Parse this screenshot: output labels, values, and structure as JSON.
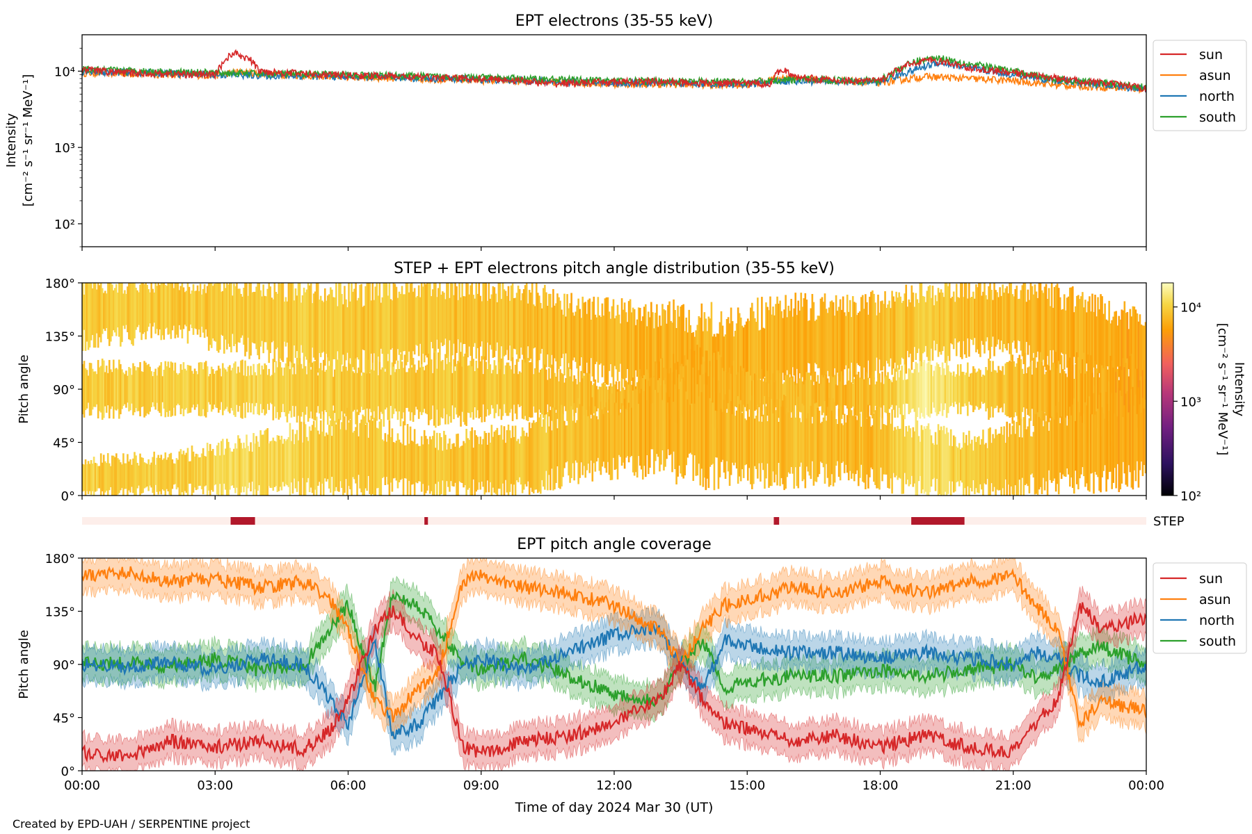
{
  "credit": "Created by EPD-UAH / SERPENTINE project",
  "colors": {
    "sun": "#d62728",
    "asun": "#ff7f0e",
    "north": "#1f77b4",
    "south": "#2ca02c",
    "step_bar": "#b2182b",
    "step_bg": "#fdeeea"
  },
  "chart_data": [
    {
      "id": "top",
      "type": "line",
      "title": "EPT electrons (35-55 keV)",
      "ylabel": [
        "Intensity",
        "[cm⁻² s⁻¹ sr⁻¹ MeV⁻¹]"
      ],
      "yscale": "log",
      "ylim": [
        50,
        30000
      ],
      "yticks": [
        {
          "value": 100,
          "label": "10²"
        },
        {
          "value": 1000,
          "label": "10³"
        },
        {
          "value": 10000,
          "label": "10⁴"
        }
      ],
      "xlim_hours": [
        0,
        24
      ],
      "legend": {
        "placement": "outside-right",
        "entries": [
          "sun",
          "asun",
          "north",
          "south"
        ]
      },
      "series": [
        {
          "name": "sun",
          "hours": [
            0,
            1,
            2,
            3,
            3.4,
            3.8,
            4,
            5,
            6,
            7,
            8,
            9,
            10,
            10.5,
            11,
            12,
            13,
            14,
            15,
            15.5,
            15.8,
            16,
            17,
            18,
            18.7,
            19,
            19.5,
            20,
            21,
            22,
            23,
            24
          ],
          "values": [
            10500,
            9500,
            9200,
            9000,
            17500,
            14000,
            10000,
            9300,
            8800,
            8600,
            8200,
            8000,
            7500,
            6800,
            7000,
            7200,
            7300,
            7000,
            7000,
            6800,
            11000,
            8500,
            7500,
            7500,
            12500,
            14000,
            13000,
            11000,
            9500,
            8000,
            7000,
            6000
          ]
        },
        {
          "name": "asun",
          "hours": [
            0,
            3,
            3.5,
            4,
            6,
            9,
            12,
            15,
            15.8,
            18,
            19,
            20,
            21,
            22,
            24
          ],
          "values": [
            9500,
            8800,
            9800,
            9200,
            8400,
            7600,
            6800,
            6600,
            8200,
            7000,
            8500,
            8000,
            7500,
            6600,
            5800
          ]
        },
        {
          "name": "north",
          "hours": [
            0,
            3,
            6,
            9,
            12,
            15,
            16,
            18,
            18.8,
            19.3,
            20,
            21,
            22,
            24
          ],
          "values": [
            10000,
            9000,
            8500,
            7800,
            7000,
            6800,
            7500,
            7200,
            10500,
            13000,
            11000,
            9000,
            7500,
            5800
          ]
        },
        {
          "name": "south",
          "hours": [
            0,
            3,
            6,
            9,
            12,
            15,
            16,
            18,
            18.8,
            19.3,
            20,
            21,
            22,
            24
          ],
          "values": [
            10500,
            9500,
            9000,
            8200,
            7500,
            7200,
            7800,
            7500,
            13500,
            15000,
            12500,
            10000,
            7800,
            6200
          ]
        }
      ]
    },
    {
      "id": "middle",
      "type": "heatmap",
      "title": "STEP + EPT electrons pitch angle distribution (35-55 keV)",
      "ylabel": "Pitch angle",
      "ylim": [
        0,
        180
      ],
      "yticks": [
        "0°",
        "45°",
        "90°",
        "135°",
        "180°"
      ],
      "xlim_hours": [
        0,
        24
      ],
      "colorbar": {
        "label": [
          "Intensity",
          "[cm⁻² s⁻¹ sr⁻¹ MeV⁻¹]"
        ],
        "scale": "log",
        "range": [
          100,
          18000
        ],
        "ticks": [
          {
            "value": 100,
            "label": "10²"
          },
          {
            "value": 1000,
            "label": "10³"
          },
          {
            "value": 10000,
            "label": "10⁴"
          }
        ]
      },
      "bands": [
        {
          "hours": [
            0,
            2,
            4,
            6,
            8,
            10,
            11,
            12,
            13,
            14,
            15,
            16,
            17,
            18,
            19,
            20,
            21,
            22,
            23,
            24
          ],
          "center": [
            155,
            160,
            150,
            140,
            150,
            145,
            135,
            130,
            120,
            110,
            115,
            130,
            130,
            135,
            145,
            150,
            150,
            140,
            130,
            120
          ],
          "width": [
            50,
            45,
            55,
            65,
            60,
            60,
            55,
            55,
            70,
            80,
            75,
            65,
            60,
            60,
            55,
            50,
            55,
            65,
            60,
            60
          ],
          "intensity": [
            9000,
            9000,
            9500,
            9000,
            8500,
            8000,
            7500,
            7500,
            7000,
            7000,
            7000,
            7000,
            7000,
            7500,
            9000,
            8000,
            7500,
            7000,
            6500,
            6000
          ]
        },
        {
          "hours": [
            0,
            2,
            4,
            6,
            8,
            10,
            11,
            12,
            13,
            14,
            15,
            16,
            17,
            18,
            19,
            20,
            21,
            22,
            23,
            24
          ],
          "center": [
            90,
            90,
            90,
            88,
            90,
            90,
            85,
            80,
            85,
            90,
            88,
            85,
            85,
            85,
            90,
            90,
            90,
            85,
            80,
            80
          ],
          "width": [
            40,
            35,
            40,
            45,
            50,
            40,
            35,
            25,
            45,
            60,
            30,
            30,
            30,
            30,
            40,
            35,
            45,
            55,
            60,
            60
          ],
          "intensity": [
            9500,
            9500,
            10000,
            9000,
            9000,
            8500,
            8000,
            7500,
            7000,
            7000,
            7500,
            7500,
            7500,
            8000,
            14000,
            9000,
            8000,
            7000,
            6500,
            6000
          ]
        },
        {
          "hours": [
            0,
            2,
            4,
            6,
            8,
            10,
            11,
            12,
            13,
            14,
            15,
            16,
            17,
            18,
            19,
            20,
            21,
            22,
            23,
            24
          ],
          "center": [
            15,
            18,
            25,
            35,
            25,
            30,
            45,
            50,
            60,
            55,
            45,
            45,
            45,
            40,
            30,
            25,
            30,
            40,
            45,
            50
          ],
          "width": [
            30,
            30,
            45,
            60,
            45,
            50,
            55,
            55,
            70,
            75,
            60,
            60,
            55,
            55,
            50,
            45,
            50,
            60,
            65,
            70
          ],
          "intensity": [
            9500,
            9500,
            11000,
            9000,
            8500,
            8500,
            8000,
            7500,
            7000,
            7000,
            7500,
            8000,
            7500,
            7500,
            12000,
            9000,
            8000,
            7000,
            6500,
            6000
          ]
        }
      ]
    },
    {
      "id": "step",
      "type": "bar",
      "label": "STEP",
      "xlim_hours": [
        0,
        24
      ],
      "segments": [
        [
          3.35,
          3.9
        ],
        [
          7.72,
          7.8
        ],
        [
          15.6,
          15.72
        ],
        [
          18.7,
          19.9
        ]
      ]
    },
    {
      "id": "bottom",
      "type": "line",
      "title": "EPT pitch angle coverage",
      "ylabel": "Pitch angle",
      "ylim": [
        0,
        180
      ],
      "yticks": [
        "0°",
        "45°",
        "90°",
        "135°",
        "180°"
      ],
      "xlabel": "Time of day 2024 Mar 30 (UT)",
      "xticks": [
        "00:00",
        "03:00",
        "06:00",
        "09:00",
        "12:00",
        "15:00",
        "18:00",
        "21:00",
        "00:00"
      ],
      "xlim_hours": [
        0,
        24
      ],
      "legend": {
        "placement": "outside-right",
        "entries": [
          "sun",
          "asun",
          "north",
          "south"
        ]
      },
      "series": [
        {
          "name": "sun",
          "hours": [
            0,
            1,
            2,
            3,
            4,
            5,
            5.6,
            6,
            6.6,
            7,
            7.6,
            8,
            8.6,
            9,
            10,
            11,
            12,
            13,
            13.5,
            14,
            14.5,
            15,
            16,
            17,
            18,
            19,
            20,
            21,
            21.5,
            22,
            22.5,
            23,
            24
          ],
          "values": [
            15,
            12,
            25,
            20,
            25,
            18,
            35,
            60,
            120,
            135,
            110,
            100,
            20,
            15,
            25,
            30,
            40,
            60,
            90,
            60,
            40,
            35,
            25,
            30,
            20,
            30,
            20,
            15,
            40,
            60,
            140,
            120,
            130
          ]
        },
        {
          "name": "asun",
          "hours": [
            0,
            1,
            2,
            3,
            4,
            5,
            5.6,
            6,
            6.6,
            7,
            7.6,
            8,
            8.6,
            9,
            10,
            11,
            12,
            13,
            13.5,
            14,
            14.5,
            15,
            16,
            17,
            18,
            19,
            20,
            21,
            21.5,
            22,
            22.5,
            23,
            24
          ],
          "values": [
            165,
            168,
            160,
            162,
            155,
            160,
            145,
            120,
            60,
            45,
            70,
            80,
            160,
            165,
            155,
            150,
            140,
            120,
            90,
            120,
            140,
            145,
            155,
            150,
            160,
            150,
            160,
            165,
            140,
            120,
            40,
            60,
            50
          ]
        },
        {
          "name": "north",
          "hours": [
            0,
            1,
            2,
            3,
            4,
            5,
            5.6,
            6,
            6.6,
            7,
            7.6,
            8,
            8.6,
            9,
            10,
            11,
            12,
            13,
            13.5,
            14,
            14.5,
            15,
            16,
            17,
            18,
            19,
            20,
            21,
            21.5,
            22,
            22.5,
            23,
            24
          ],
          "values": [
            90,
            88,
            92,
            85,
            95,
            90,
            60,
            40,
            110,
            30,
            40,
            60,
            90,
            95,
            85,
            100,
            115,
            120,
            90,
            70,
            110,
            105,
            100,
            100,
            95,
            100,
            95,
            90,
            100,
            95,
            80,
            75,
            90
          ]
        },
        {
          "name": "south",
          "hours": [
            0,
            1,
            2,
            3,
            4,
            5,
            5.6,
            6,
            6.6,
            7,
            7.6,
            8,
            8.6,
            9,
            10,
            11,
            12,
            13,
            13.5,
            14,
            14.5,
            15,
            16,
            17,
            18,
            19,
            20,
            21,
            21.5,
            22,
            22.5,
            23,
            24
          ],
          "values": [
            90,
            92,
            88,
            95,
            85,
            90,
            120,
            140,
            70,
            150,
            140,
            120,
            90,
            85,
            95,
            80,
            65,
            60,
            90,
            110,
            70,
            75,
            80,
            80,
            85,
            80,
            85,
            90,
            80,
            85,
            100,
            105,
            90
          ]
        }
      ]
    }
  ]
}
